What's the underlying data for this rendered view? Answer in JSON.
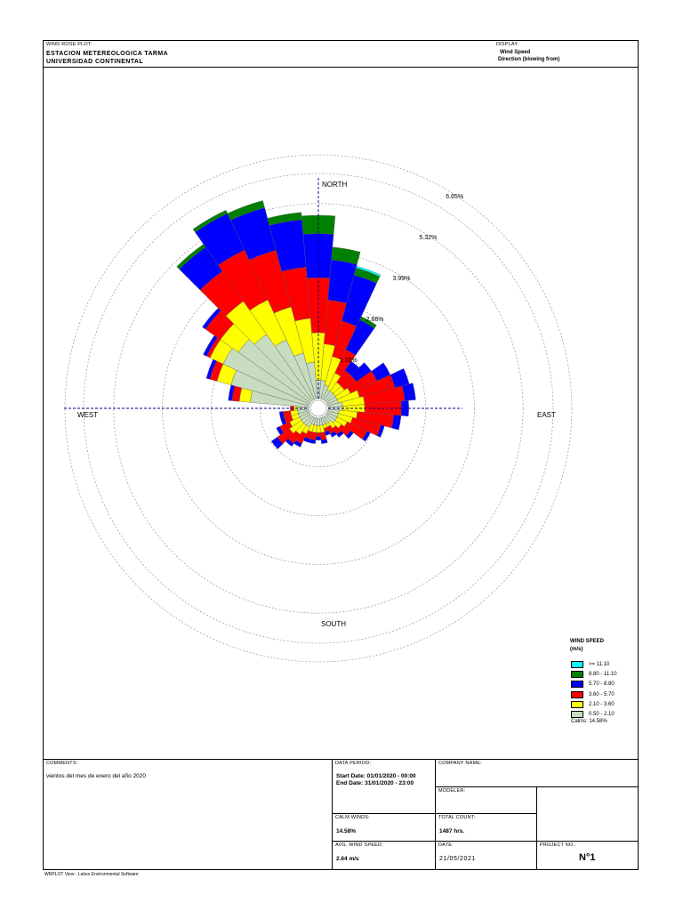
{
  "header": {
    "plot_label": "WIND ROSE PLOT:",
    "station": "ESTACION METEREOLOGICA TARMA",
    "institution": "UNIVERSIDAD CONTINENTAL",
    "display_label": "DISPLAY:",
    "display_1": "Wind Speed",
    "display_2": "Direction (blowing from)"
  },
  "chart_data": {
    "type": "windrose",
    "directions": [
      "N",
      "NNE",
      "NE",
      "ENE",
      "E",
      "ESE",
      "SE",
      "SSE",
      "S",
      "SSW",
      "SW",
      "WSW",
      "W",
      "WNW",
      "NW",
      "NNW"
    ],
    "sectors": 36,
    "sector_dirs_deg": [
      0,
      10,
      20,
      30,
      40,
      50,
      60,
      70,
      80,
      90,
      100,
      110,
      120,
      130,
      140,
      150,
      160,
      170,
      180,
      190,
      200,
      210,
      220,
      230,
      240,
      250,
      260,
      270,
      280,
      290,
      300,
      310,
      320,
      330,
      340,
      350
    ],
    "speed_bins": [
      {
        "label": "0.50 - 2.10",
        "color": "#c8dcc0"
      },
      {
        "label": "2.10 - 3.60",
        "color": "#ffff00"
      },
      {
        "label": "3.60 - 5.70",
        "color": "#ff0000"
      },
      {
        "label": "5.70 - 8.80",
        "color": "#0000ff"
      },
      {
        "label": "8.80 - 11.10",
        "color": "#008000"
      },
      {
        "label": ">= 11.10",
        "color": "#00ffff"
      }
    ],
    "cumulative_percent": [
      [
        0.5,
        1.8,
        3.3,
        4.5,
        5.0,
        5.0
      ],
      [
        0.5,
        1.5,
        2.7,
        3.8,
        4.15,
        4.15
      ],
      [
        0.4,
        1.2,
        2.2,
        3.5,
        3.7,
        3.75
      ],
      [
        0.3,
        0.8,
        1.5,
        2.4,
        2.5,
        2.5
      ],
      [
        0.3,
        0.6,
        1.0,
        1.3,
        1.3,
        1.3
      ],
      [
        0.3,
        0.6,
        1.0,
        1.5,
        1.5,
        1.5
      ],
      [
        0.3,
        0.7,
        1.5,
        1.9,
        1.9,
        1.9
      ],
      [
        0.3,
        0.9,
        1.9,
        2.3,
        2.3,
        2.3
      ],
      [
        0.4,
        1.0,
        2.1,
        2.4,
        2.4,
        2.4
      ],
      [
        0.4,
        1.0,
        2.0,
        2.2,
        2.2,
        2.2
      ],
      [
        0.3,
        0.8,
        1.8,
        2.0,
        2.0,
        2.0
      ],
      [
        0.3,
        0.7,
        1.5,
        1.6,
        1.6,
        1.6
      ],
      [
        0.3,
        0.6,
        1.2,
        1.3,
        1.3,
        1.3
      ],
      [
        0.3,
        0.5,
        0.8,
        0.9,
        0.9,
        0.9
      ],
      [
        0.2,
        0.4,
        0.6,
        0.7,
        0.7,
        0.7
      ],
      [
        0.2,
        0.3,
        0.5,
        0.6,
        0.6,
        0.6
      ],
      [
        0.2,
        0.3,
        0.4,
        0.5,
        0.5,
        0.5
      ],
      [
        0.2,
        0.4,
        0.6,
        0.7,
        0.7,
        0.7
      ],
      [
        0.2,
        0.4,
        0.5,
        0.6,
        0.6,
        0.6
      ],
      [
        0.2,
        0.4,
        0.6,
        0.7,
        0.7,
        0.7
      ],
      [
        0.2,
        0.4,
        0.6,
        0.7,
        0.7,
        0.7
      ],
      [
        0.3,
        0.5,
        0.8,
        0.9,
        0.9,
        0.9
      ],
      [
        0.3,
        0.6,
        0.9,
        1.0,
        1.0,
        1.0
      ],
      [
        0.3,
        0.7,
        1.1,
        1.3,
        1.3,
        1.3
      ],
      [
        0.3,
        0.6,
        0.9,
        1.0,
        1.0,
        1.0
      ],
      [
        0.3,
        0.5,
        0.7,
        0.8,
        0.8,
        0.8
      ],
      [
        0.3,
        0.5,
        0.7,
        0.8,
        0.8,
        0.8
      ],
      [
        0.3,
        0.4,
        0.5,
        0.5,
        0.5,
        0.5
      ],
      [
        1.6,
        1.9,
        2.1,
        2.2,
        2.2,
        2.2
      ],
      [
        2.2,
        2.6,
        2.8,
        2.9,
        2.9,
        2.9
      ],
      [
        2.6,
        3.0,
        3.1,
        3.2,
        3.2,
        3.2
      ],
      [
        2.4,
        3.0,
        3.5,
        3.6,
        3.6,
        3.6
      ],
      [
        2.2,
        3.3,
        4.3,
        5.1,
        5.2,
        5.2
      ],
      [
        1.8,
        3.0,
        4.5,
        5.6,
        5.7,
        5.7
      ],
      [
        1.3,
        2.6,
        4.2,
        5.4,
        5.6,
        5.6
      ],
      [
        1.0,
        2.2,
        3.6,
        4.9,
        5.1,
        5.1
      ]
    ],
    "rings": [
      {
        "value": 1.33,
        "label": "1.33%"
      },
      {
        "value": 2.66,
        "label": "2.66%"
      },
      {
        "value": 3.99,
        "label": "3.99%"
      },
      {
        "value": 5.32,
        "label": "5.32%"
      },
      {
        "value": 6.65,
        "label": "6.65%"
      }
    ],
    "compass": {
      "north": "NORTH",
      "south": "SOUTH",
      "east": "EAST",
      "west": "WEST"
    },
    "legend": {
      "title": "WIND SPEED",
      "unit": "(m/s)",
      "calms": "Calms: 14.58%",
      "placement": "bottom-right"
    }
  },
  "info": {
    "comments_label": "COMMENTS:",
    "comments": "vientos del mes de enero del año 2020",
    "data_period_label": "DATA PERIOD:",
    "start": "Start Date: 01/01/2020 - 00:00",
    "end": "End Date: 31/01/2020 - 23:00",
    "company_label": "COMPANY NAME:",
    "modeler_label": "MODELER:",
    "calm_label": "CALM WINDS:",
    "calm_value": "14.58%",
    "total_label": "TOTAL COUNT:",
    "total_value": "1487 hrs.",
    "avg_label": "AVG. WIND SPEED:",
    "avg_value": "2.64 m/s",
    "date_label": "DATE:",
    "date_value": "21/05/2021",
    "project_label": "PROJECT NO.:",
    "project_value": "N°1"
  },
  "footer": "WRPLOT View - Lakes Environmental Software"
}
